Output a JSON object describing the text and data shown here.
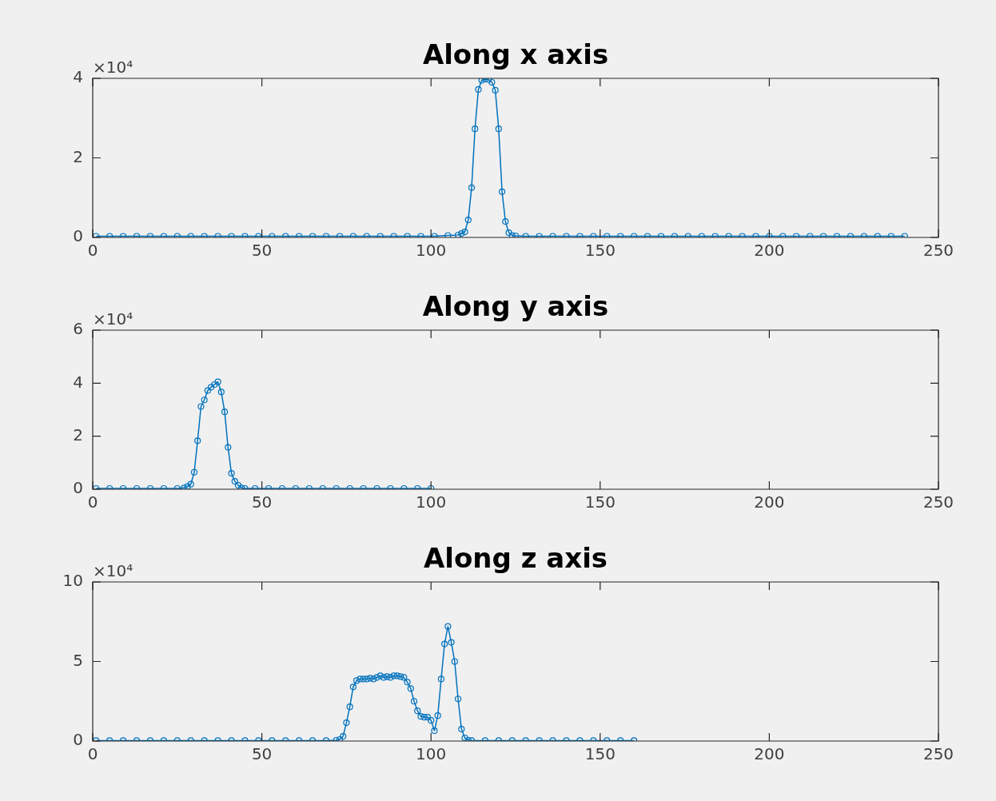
{
  "chart_data": [
    {
      "type": "line",
      "title": "Along x axis",
      "color": "#0072bd",
      "marker": "circle",
      "xlim": [
        0,
        250
      ],
      "xticks": [
        0,
        50,
        100,
        150,
        200,
        250
      ],
      "ylim": [
        0,
        4
      ],
      "yticks": [
        0,
        2,
        4
      ],
      "annotations": [
        "×10⁴"
      ],
      "x": [
        1,
        5,
        9,
        13,
        17,
        21,
        25,
        29,
        33,
        37,
        41,
        45,
        49,
        53,
        57,
        61,
        65,
        69,
        73,
        77,
        81,
        85,
        89,
        93,
        97,
        101,
        105,
        108,
        109,
        110,
        111,
        112,
        113,
        114,
        115,
        116,
        117,
        118,
        119,
        120,
        121,
        122,
        123,
        124,
        125,
        128,
        132,
        136,
        140,
        144,
        148,
        152,
        156,
        160,
        164,
        168,
        172,
        176,
        180,
        184,
        188,
        192,
        196,
        200,
        204,
        208,
        212,
        216,
        220,
        224,
        228,
        232,
        236,
        240
      ],
      "values": [
        0.03,
        0.03,
        0.03,
        0.03,
        0.03,
        0.03,
        0.03,
        0.03,
        0.03,
        0.03,
        0.03,
        0.03,
        0.03,
        0.03,
        0.03,
        0.03,
        0.03,
        0.03,
        0.03,
        0.03,
        0.03,
        0.03,
        0.03,
        0.03,
        0.03,
        0.03,
        0.05,
        0.06,
        0.1,
        0.14,
        0.44,
        1.25,
        2.73,
        3.72,
        3.95,
        3.98,
        3.97,
        3.9,
        3.7,
        2.73,
        1.15,
        0.4,
        0.12,
        0.05,
        0.04,
        0.03,
        0.03,
        0.03,
        0.03,
        0.03,
        0.03,
        0.03,
        0.03,
        0.03,
        0.03,
        0.03,
        0.03,
        0.03,
        0.03,
        0.03,
        0.03,
        0.03,
        0.03,
        0.03,
        0.03,
        0.03,
        0.03,
        0.03,
        0.03,
        0.03,
        0.03,
        0.03,
        0.03,
        0.03
      ]
    },
    {
      "type": "line",
      "title": "Along y axis",
      "color": "#0072bd",
      "marker": "circle",
      "xlim": [
        0,
        250
      ],
      "xticks": [
        0,
        50,
        100,
        150,
        200,
        250
      ],
      "ylim": [
        0,
        6
      ],
      "yticks": [
        0,
        2,
        4,
        6
      ],
      "annotations": [
        "×10⁴"
      ],
      "x": [
        1,
        5,
        9,
        13,
        17,
        21,
        25,
        27,
        28,
        29,
        30,
        31,
        32,
        33,
        34,
        35,
        36,
        37,
        38,
        39,
        40,
        41,
        42,
        43,
        44,
        45,
        48,
        52,
        56,
        60,
        64,
        68,
        72,
        76,
        80,
        84,
        88,
        92,
        96,
        100
      ],
      "values": [
        0.03,
        0.03,
        0.03,
        0.03,
        0.03,
        0.03,
        0.03,
        0.05,
        0.1,
        0.19,
        0.64,
        1.83,
        3.12,
        3.37,
        3.72,
        3.85,
        3.95,
        4.05,
        3.67,
        2.92,
        1.58,
        0.6,
        0.3,
        0.15,
        0.05,
        0.03,
        0.03,
        0.03,
        0.03,
        0.03,
        0.03,
        0.03,
        0.03,
        0.03,
        0.03,
        0.03,
        0.03,
        0.03,
        0.03,
        0.03
      ]
    },
    {
      "type": "line",
      "title": "Along z axis",
      "color": "#0072bd",
      "marker": "circle",
      "xlim": [
        0,
        250
      ],
      "xticks": [
        0,
        50,
        100,
        150,
        200,
        250
      ],
      "ylim": [
        0,
        10
      ],
      "yticks": [
        0,
        5,
        10
      ],
      "annotations": [
        "×10⁴"
      ],
      "x": [
        1,
        5,
        9,
        13,
        17,
        21,
        25,
        29,
        33,
        37,
        41,
        45,
        49,
        53,
        57,
        61,
        65,
        69,
        72,
        73,
        74,
        75,
        76,
        77,
        78,
        79,
        80,
        81,
        82,
        83,
        84,
        85,
        86,
        87,
        88,
        89,
        90,
        91,
        92,
        93,
        94,
        95,
        96,
        97,
        98,
        99,
        100,
        101,
        102,
        103,
        104,
        105,
        106,
        107,
        108,
        109,
        110,
        111,
        112,
        116,
        120,
        124,
        128,
        132,
        136,
        140,
        144,
        148,
        152,
        156,
        160
      ],
      "values": [
        0.03,
        0.03,
        0.03,
        0.03,
        0.03,
        0.03,
        0.03,
        0.03,
        0.03,
        0.03,
        0.03,
        0.03,
        0.03,
        0.03,
        0.03,
        0.03,
        0.03,
        0.03,
        0.05,
        0.1,
        0.3,
        1.15,
        2.15,
        3.4,
        3.8,
        3.9,
        3.9,
        3.9,
        3.95,
        3.9,
        4.0,
        4.1,
        4.0,
        4.05,
        4.0,
        4.1,
        4.1,
        4.05,
        4.0,
        3.7,
        3.3,
        2.5,
        1.9,
        1.55,
        1.5,
        1.5,
        1.3,
        0.65,
        1.6,
        3.9,
        6.1,
        7.2,
        6.2,
        5.0,
        2.65,
        0.75,
        0.2,
        0.05,
        0.03,
        0.03,
        0.03,
        0.03,
        0.03,
        0.03,
        0.03,
        0.03,
        0.03,
        0.03,
        0.03,
        0.03,
        0.03
      ]
    }
  ]
}
